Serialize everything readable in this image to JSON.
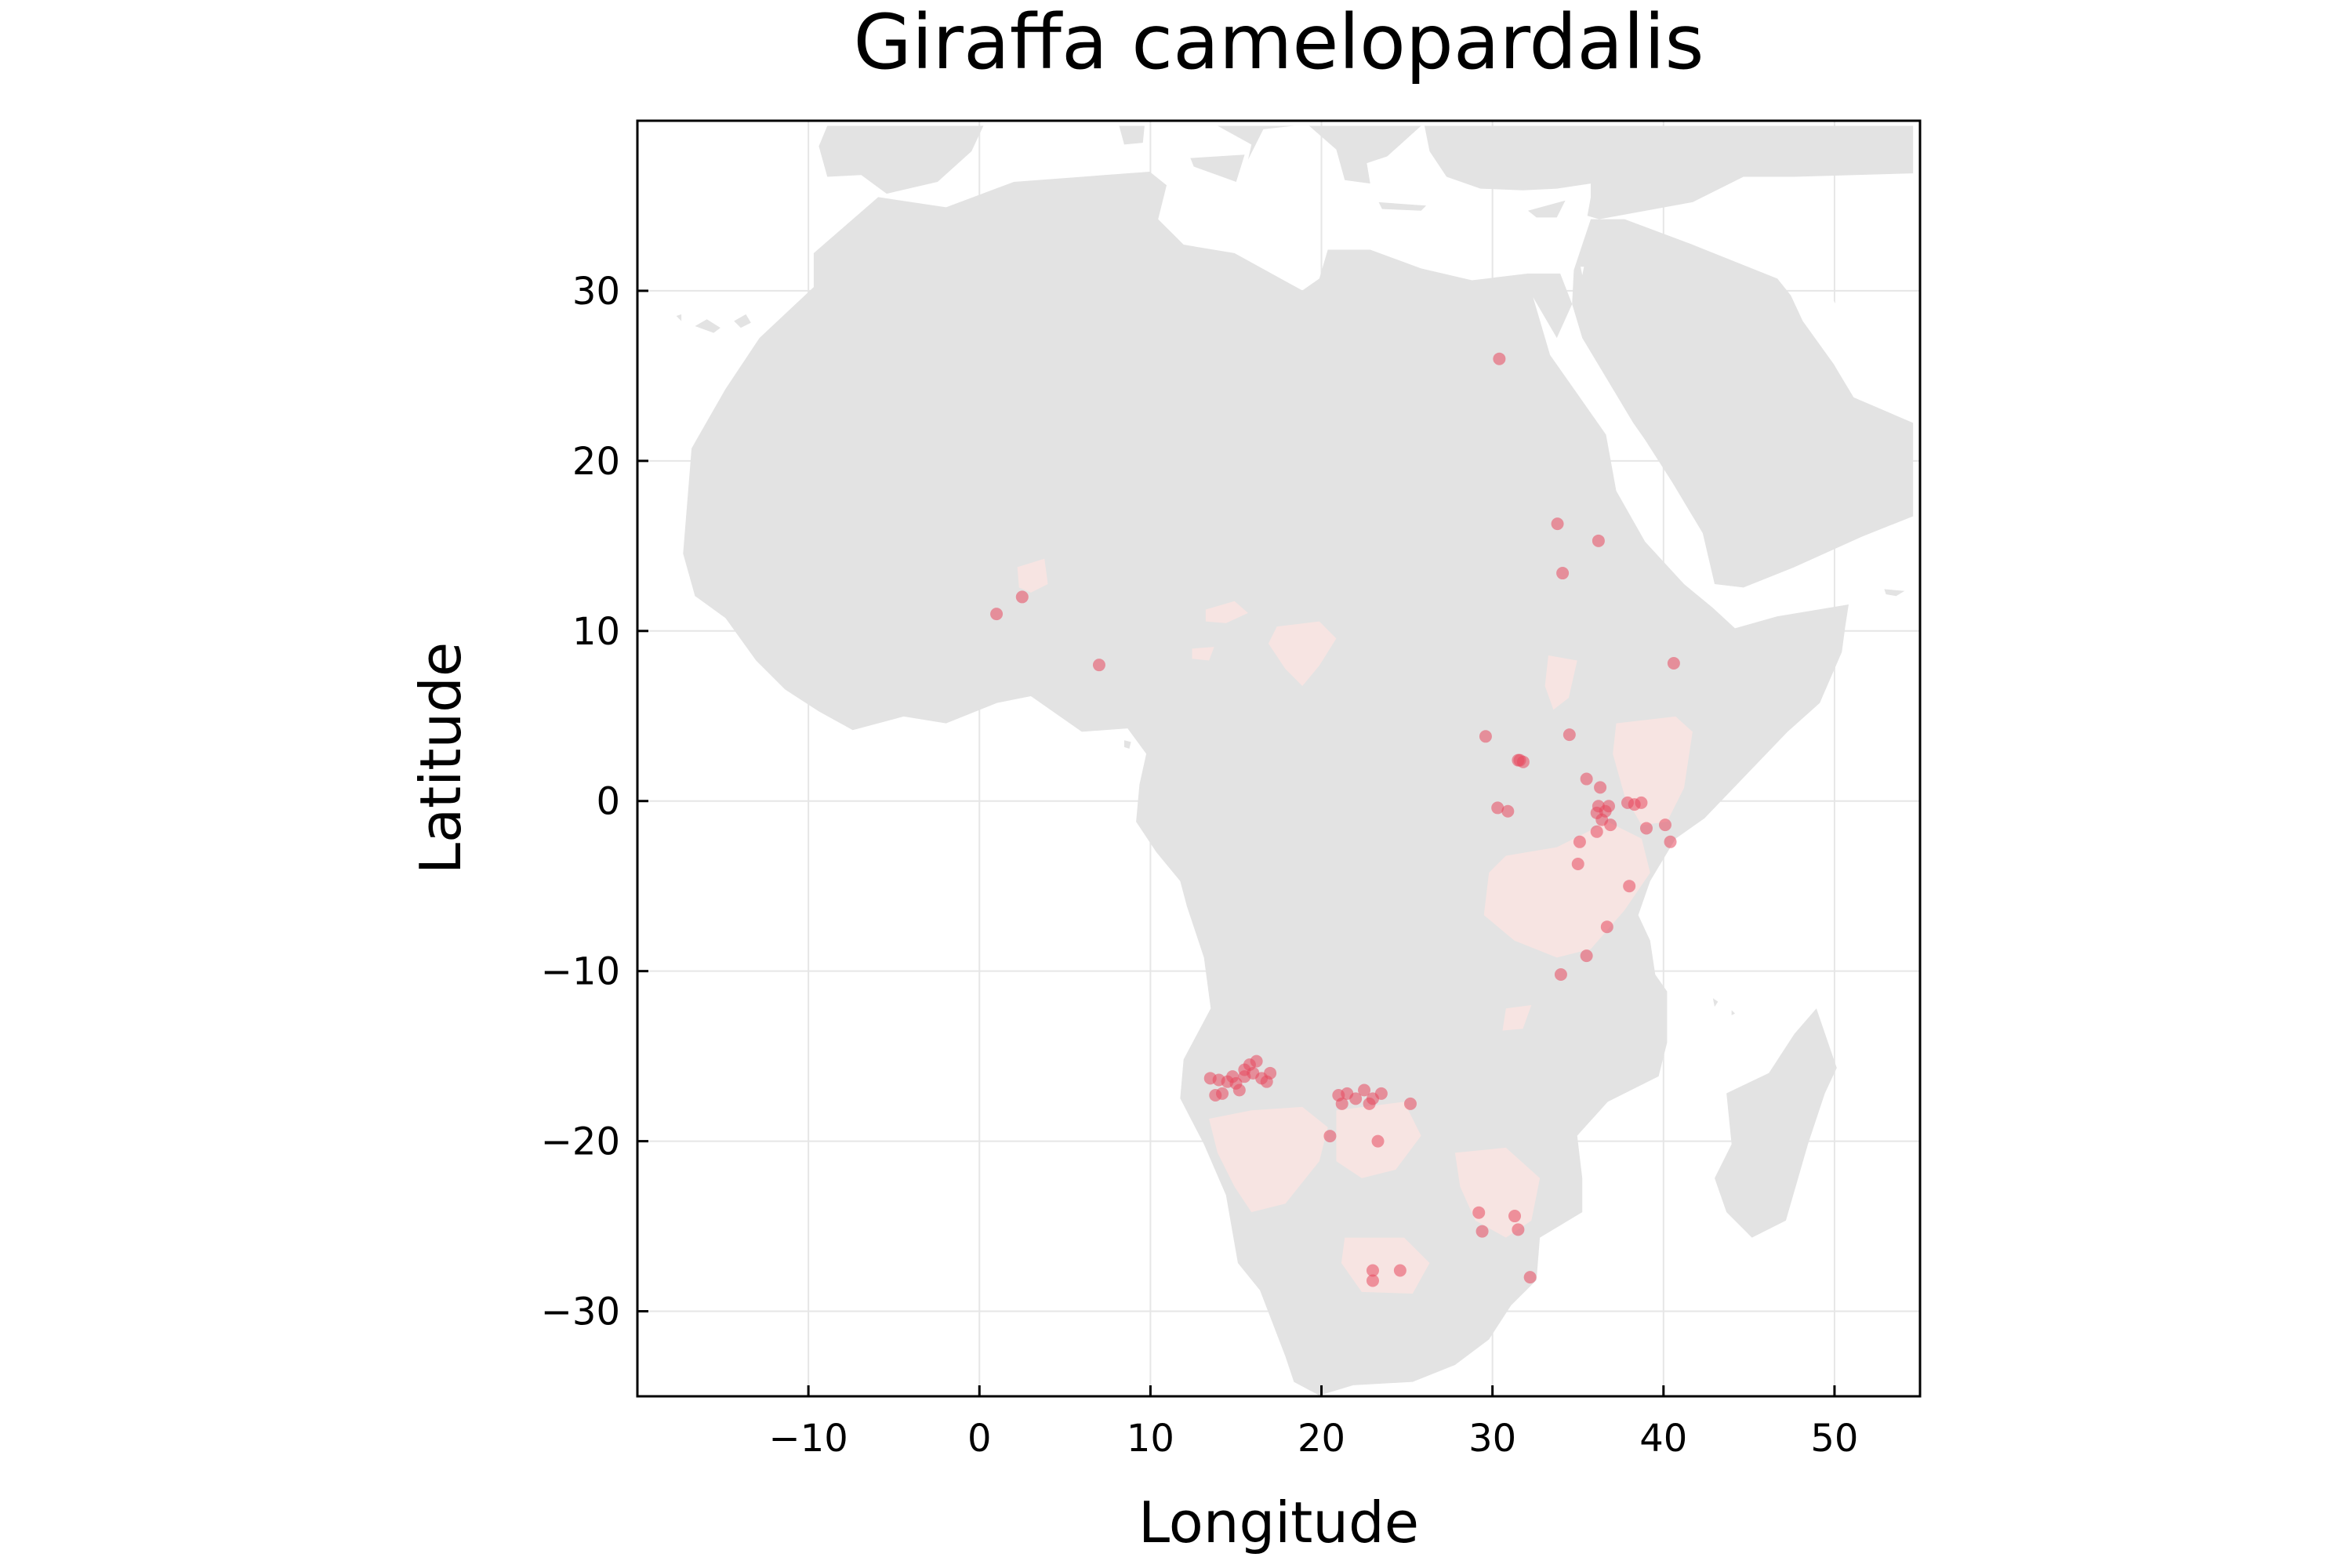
{
  "chart_data": {
    "type": "scatter",
    "title": "Giraffa camelopardalis",
    "xlabel": "Longitude",
    "ylabel": "Latitude",
    "xlim": [
      -20,
      55
    ],
    "ylim": [
      -35,
      40
    ],
    "xticks": [
      -10,
      0,
      10,
      20,
      30,
      40,
      50
    ],
    "yticks": [
      -30,
      -20,
      -10,
      0,
      10,
      20,
      30
    ],
    "xtick_labels": [
      "−10",
      "0",
      "10",
      "20",
      "30",
      "40",
      "50"
    ],
    "ytick_labels": [
      "−30",
      "−20",
      "−10",
      "0",
      "10",
      "20",
      "30"
    ],
    "grid": true,
    "legend": "none",
    "colors": {
      "land": "#e3e3e3",
      "range": "#f7e4e2",
      "points": "#e8485e",
      "grid": "#e6e6e6",
      "axis": "#000000"
    },
    "range_regions": [
      [
        [
          2.2,
          14
        ],
        [
          3.8,
          14.5
        ],
        [
          4,
          13
        ],
        [
          3,
          12.5
        ],
        [
          2.3,
          12.8
        ]
      ],
      [
        [
          13.3,
          11.5
        ],
        [
          15,
          12
        ],
        [
          15.8,
          11.3
        ],
        [
          14.5,
          10.7
        ],
        [
          13.3,
          10.8
        ]
      ],
      [
        [
          12.5,
          9.2
        ],
        [
          13.8,
          9.3
        ],
        [
          13.5,
          8.5
        ],
        [
          12.5,
          8.6
        ]
      ],
      [
        [
          17.5,
          10.5
        ],
        [
          20,
          10.8
        ],
        [
          21,
          9.8
        ],
        [
          20,
          8.2
        ],
        [
          19,
          7
        ],
        [
          18,
          8
        ],
        [
          17,
          9.5
        ]
      ],
      [
        [
          33.5,
          8.8
        ],
        [
          35.2,
          8.5
        ],
        [
          34.7,
          6.3
        ],
        [
          33.8,
          5.6
        ],
        [
          33.3,
          7
        ]
      ],
      [
        [
          37.5,
          4.8
        ],
        [
          41,
          5.2
        ],
        [
          42,
          4.3
        ],
        [
          41.5,
          1
        ],
        [
          40.5,
          -1
        ],
        [
          39,
          -1.2
        ],
        [
          38,
          0.5
        ],
        [
          37.3,
          3
        ]
      ],
      [
        [
          31,
          -3
        ],
        [
          34,
          -2.5
        ],
        [
          37,
          -1
        ],
        [
          39,
          -2
        ],
        [
          39.5,
          -4
        ],
        [
          38,
          -6.2
        ],
        [
          36,
          -8.5
        ],
        [
          34,
          -9
        ],
        [
          31.5,
          -8
        ],
        [
          29.7,
          -6.5
        ],
        [
          30,
          -4
        ]
      ],
      [
        [
          31,
          -12
        ],
        [
          32.5,
          -11.8
        ],
        [
          32,
          -13.2
        ],
        [
          30.8,
          -13.3
        ]
      ],
      [
        [
          13.5,
          -18.5
        ],
        [
          16,
          -18
        ],
        [
          19,
          -17.8
        ],
        [
          20.5,
          -19
        ],
        [
          20,
          -21
        ],
        [
          18,
          -23.5
        ],
        [
          16,
          -24
        ],
        [
          15,
          -22.5
        ],
        [
          14,
          -20.5
        ]
      ],
      [
        [
          21,
          -18
        ],
        [
          25,
          -17.5
        ],
        [
          26,
          -19.5
        ],
        [
          24.5,
          -21.5
        ],
        [
          22.5,
          -22
        ],
        [
          21,
          -21
        ]
      ],
      [
        [
          28,
          -20.5
        ],
        [
          31,
          -20.2
        ],
        [
          33,
          -22
        ],
        [
          32.5,
          -24.5
        ],
        [
          31,
          -25.5
        ],
        [
          29.2,
          -24.5
        ],
        [
          28.3,
          -22.5
        ]
      ],
      [
        [
          21.5,
          -25.5
        ],
        [
          25,
          -25.5
        ],
        [
          26.5,
          -27
        ],
        [
          25.5,
          -28.8
        ],
        [
          22.5,
          -28.7
        ],
        [
          21.3,
          -27
        ]
      ]
    ],
    "points": [
      [
        30.4,
        26
      ],
      [
        33.8,
        16.3
      ],
      [
        36.2,
        15.3
      ],
      [
        34.1,
        13.4
      ],
      [
        2.5,
        12
      ],
      [
        1,
        11
      ],
      [
        7,
        8
      ],
      [
        40.6,
        8.1
      ],
      [
        29.6,
        3.8
      ],
      [
        34.5,
        3.9
      ],
      [
        31.5,
        2.4
      ],
      [
        31.8,
        2.3
      ],
      [
        31.6,
        2.4
      ],
      [
        35.5,
        1.3
      ],
      [
        36.3,
        0.8
      ],
      [
        37.9,
        -0.1
      ],
      [
        38.3,
        -0.2
      ],
      [
        38.7,
        -0.1
      ],
      [
        36.2,
        -0.3
      ],
      [
        36.8,
        -0.3
      ],
      [
        36.6,
        -0.6
      ],
      [
        36.1,
        -0.7
      ],
      [
        36.4,
        -1.1
      ],
      [
        36.9,
        -1.4
      ],
      [
        36.1,
        -1.8
      ],
      [
        30.9,
        -0.6
      ],
      [
        30.3,
        -0.4
      ],
      [
        35.1,
        -2.4
      ],
      [
        35,
        -3.7
      ],
      [
        39,
        -1.6
      ],
      [
        40.1,
        -1.4
      ],
      [
        40.4,
        -2.4
      ],
      [
        38,
        -5
      ],
      [
        36.7,
        -7.4
      ],
      [
        35.5,
        -9.1
      ],
      [
        34,
        -10.2
      ],
      [
        13.5,
        -16.3
      ],
      [
        14,
        -16.4
      ],
      [
        14.5,
        -16.5
      ],
      [
        15,
        -16.6
      ],
      [
        15.5,
        -16.2
      ],
      [
        16,
        -16
      ],
      [
        16.5,
        -16.3
      ],
      [
        17,
        -16
      ],
      [
        15.8,
        -15.5
      ],
      [
        16.2,
        -15.3
      ],
      [
        14.8,
        -16.2
      ],
      [
        15.2,
        -17
      ],
      [
        14.2,
        -17.2
      ],
      [
        13.8,
        -17.3
      ],
      [
        16.8,
        -16.5
      ],
      [
        15.5,
        -15.8
      ],
      [
        21,
        -17.3
      ],
      [
        21.5,
        -17.2
      ],
      [
        22,
        -17.5
      ],
      [
        22.5,
        -17
      ],
      [
        23,
        -17.5
      ],
      [
        23.5,
        -17.2
      ],
      [
        21.2,
        -17.8
      ],
      [
        22.8,
        -17.8
      ],
      [
        20.5,
        -19.7
      ],
      [
        23.3,
        -20
      ],
      [
        25.2,
        -17.8
      ],
      [
        29.2,
        -24.2
      ],
      [
        29.4,
        -25.3
      ],
      [
        31.3,
        -24.4
      ],
      [
        31.5,
        -25.2
      ],
      [
        32.2,
        -28
      ],
      [
        24.6,
        -27.6
      ],
      [
        23,
        -27.6
      ],
      [
        23,
        -28.2
      ]
    ]
  }
}
